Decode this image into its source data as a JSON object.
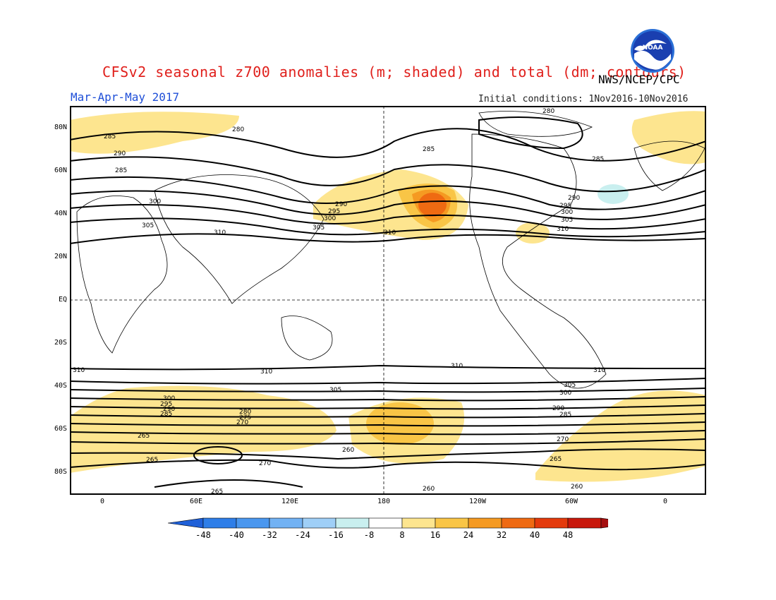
{
  "header": {
    "title": "CFSv2 seasonal z700 anomalies (m; shaded) and total (dm; contours)",
    "agency": "NWS/NCEP/CPC",
    "season": "Mar-Apr-May 2017",
    "initial_conditions": "Initial conditions: 1Nov2016-10Nov2016",
    "logo_text": "NOAA"
  },
  "axes": {
    "lat_labels": [
      "80N",
      "60N",
      "40N",
      "20N",
      "EQ",
      "20S",
      "40S",
      "60S",
      "80S"
    ],
    "lon_labels": [
      "0",
      "60E",
      "120E",
      "180",
      "120W",
      "60W",
      "0"
    ]
  },
  "contours": {
    "north": [
      "285",
      "280",
      "290",
      "285",
      "300",
      "305",
      "310",
      "285",
      "290",
      "295",
      "300",
      "305",
      "310",
      "280",
      "285",
      "290",
      "295",
      "300",
      "305",
      "310"
    ],
    "south": [
      "310",
      "310",
      "310",
      "310",
      "305",
      "300",
      "295",
      "290",
      "285",
      "280",
      "275",
      "270",
      "265",
      "260",
      "265",
      "270",
      "265",
      "260",
      "300",
      "305",
      "290",
      "285",
      "270",
      "265",
      "260"
    ]
  },
  "colorbar": {
    "ticks": [
      "-48",
      "-40",
      "-32",
      "-24",
      "-16",
      "-8",
      "8",
      "16",
      "24",
      "32",
      "40",
      "48"
    ],
    "colors": [
      "#1f60d8",
      "#2e7ee8",
      "#4a97ef",
      "#72b2f4",
      "#9fcff7",
      "#c9efef",
      "#ffffff",
      "#fde58f",
      "#f9c546",
      "#f59a22",
      "#ef6a12",
      "#e43a0c",
      "#c8180c",
      "#a50f0f"
    ]
  },
  "anomaly_colors": {
    "light": "#fde58f",
    "medium": "#f9c546",
    "strong": "#f59a22",
    "peak": "#ef6a12",
    "negative": "#c9efef"
  }
}
